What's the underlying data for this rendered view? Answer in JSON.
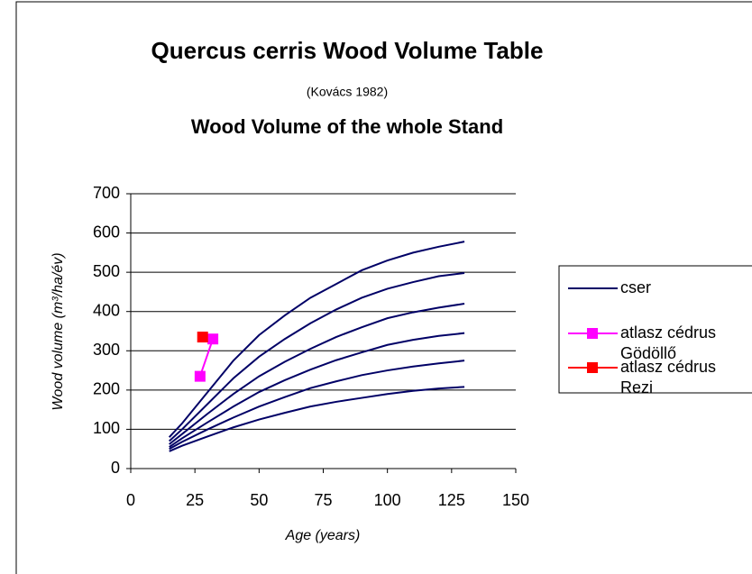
{
  "chart_data": {
    "type": "line",
    "title": "Quercus cerris Wood Volume Table",
    "subtitle": "(Kovács 1982)",
    "subtitle2": "Wood Volume of the whole Stand",
    "xlabel": "Age (years)",
    "ylabel": "Wood volume (m³/ha/év)",
    "xlim": [
      0,
      150
    ],
    "xticks": [
      0,
      25,
      50,
      75,
      100,
      125,
      150
    ],
    "ylim": [
      0,
      700
    ],
    "yticks": [
      0,
      100,
      200,
      300,
      400,
      500,
      600,
      700
    ],
    "grid": true,
    "legend": "right",
    "series": [
      {
        "name": "cser",
        "color": "#000066",
        "marker": false,
        "x": [
          15,
          20,
          30,
          40,
          50,
          60,
          70,
          80,
          90,
          100,
          110,
          120,
          130
        ],
        "values": [
          80,
          115,
          195,
          275,
          340,
          390,
          435,
          470,
          505,
          530,
          550,
          565,
          578
        ]
      },
      {
        "color": "#000066",
        "marker": false,
        "x": [
          15,
          20,
          30,
          40,
          50,
          60,
          70,
          80,
          90,
          100,
          110,
          120,
          130
        ],
        "values": [
          70,
          100,
          165,
          230,
          285,
          330,
          370,
          405,
          435,
          458,
          475,
          490,
          498
        ]
      },
      {
        "color": "#000066",
        "marker": false,
        "x": [
          15,
          20,
          30,
          40,
          50,
          60,
          70,
          80,
          90,
          100,
          110,
          120,
          130
        ],
        "values": [
          62,
          88,
          140,
          190,
          235,
          272,
          305,
          335,
          360,
          383,
          398,
          410,
          420
        ]
      },
      {
        "color": "#000066",
        "marker": false,
        "x": [
          15,
          20,
          30,
          40,
          50,
          60,
          70,
          80,
          90,
          100,
          110,
          120,
          130
        ],
        "values": [
          55,
          77,
          118,
          158,
          195,
          225,
          252,
          276,
          296,
          315,
          328,
          338,
          345
        ]
      },
      {
        "color": "#000066",
        "marker": false,
        "x": [
          15,
          20,
          30,
          40,
          50,
          60,
          70,
          80,
          90,
          100,
          110,
          120,
          130
        ],
        "values": [
          50,
          68,
          100,
          130,
          158,
          182,
          205,
          222,
          238,
          250,
          260,
          268,
          275
        ]
      },
      {
        "color": "#000066",
        "marker": false,
        "x": [
          15,
          20,
          30,
          40,
          50,
          60,
          70,
          80,
          90,
          100,
          110,
          120,
          130
        ],
        "values": [
          44,
          58,
          82,
          105,
          125,
          142,
          158,
          170,
          180,
          190,
          198,
          204,
          208
        ]
      },
      {
        "name": "atlasz cédrus Gödöllő",
        "color": "#ff00ff",
        "marker": true,
        "x": [
          27,
          32
        ],
        "values": [
          235,
          330
        ]
      },
      {
        "name": "atlasz cédrus Rezi",
        "color": "#ff0000",
        "marker": true,
        "x": [
          28
        ],
        "values": [
          335
        ]
      }
    ]
  }
}
